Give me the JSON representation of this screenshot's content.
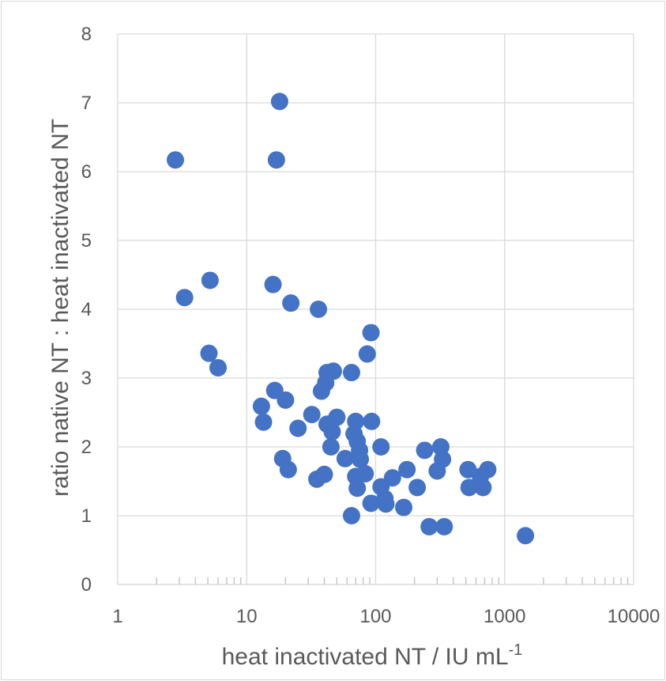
{
  "chart_data": {
    "type": "scatter",
    "xlabel": "heat inactivated NT / IU mL",
    "xlabel_sup": "-1",
    "ylabel": "ratio native NT : heat inactivated NT",
    "x_scale": "log",
    "xlim": [
      1,
      10000
    ],
    "ylim": [
      0,
      8
    ],
    "x_ticks": [
      "1",
      "10",
      "100",
      "1000",
      "10000"
    ],
    "y_ticks": [
      "0",
      "1",
      "2",
      "3",
      "4",
      "5",
      "6",
      "7",
      "8"
    ],
    "grid": true,
    "legend": "none",
    "marker_color": "#4472c4",
    "series": [
      {
        "points": [
          [
            2.8,
            6.17
          ],
          [
            18,
            7.02
          ],
          [
            17,
            6.17
          ],
          [
            3.3,
            4.17
          ],
          [
            5.2,
            4.42
          ],
          [
            16,
            4.36
          ],
          [
            22,
            4.09
          ],
          [
            36,
            4.0
          ],
          [
            5.1,
            3.36
          ],
          [
            6,
            3.15
          ],
          [
            92,
            3.66
          ],
          [
            86,
            3.35
          ],
          [
            42,
            3.08
          ],
          [
            47,
            3.1
          ],
          [
            65,
            3.08
          ],
          [
            41,
            2.93
          ],
          [
            38,
            2.81
          ],
          [
            16.5,
            2.82
          ],
          [
            20,
            2.68
          ],
          [
            13,
            2.59
          ],
          [
            13.5,
            2.36
          ],
          [
            25,
            2.27
          ],
          [
            32,
            2.47
          ],
          [
            42,
            2.33
          ],
          [
            46,
            2.22
          ],
          [
            50,
            2.43
          ],
          [
            45,
            2.0
          ],
          [
            70,
            2.37
          ],
          [
            93,
            2.37
          ],
          [
            68,
            2.19
          ],
          [
            72,
            2.08
          ],
          [
            75,
            1.95
          ],
          [
            110,
            2.0
          ],
          [
            58,
            1.83
          ],
          [
            76,
            1.82
          ],
          [
            19,
            1.83
          ],
          [
            21,
            1.67
          ],
          [
            35,
            1.53
          ],
          [
            40,
            1.6
          ],
          [
            70,
            1.57
          ],
          [
            83,
            1.61
          ],
          [
            72,
            1.4
          ],
          [
            65,
            1.0
          ],
          [
            92,
            1.18
          ],
          [
            110,
            1.42
          ],
          [
            118,
            1.25
          ],
          [
            120,
            1.17
          ],
          [
            135,
            1.55
          ],
          [
            165,
            1.12
          ],
          [
            175,
            1.67
          ],
          [
            210,
            1.41
          ],
          [
            240,
            1.95
          ],
          [
            260,
            0.84
          ],
          [
            300,
            1.65
          ],
          [
            320,
            2.0
          ],
          [
            330,
            1.82
          ],
          [
            340,
            0.84
          ],
          [
            520,
            1.67
          ],
          [
            530,
            1.41
          ],
          [
            650,
            1.57
          ],
          [
            680,
            1.41
          ],
          [
            740,
            1.67
          ],
          [
            1450,
            0.71
          ]
        ]
      }
    ]
  }
}
